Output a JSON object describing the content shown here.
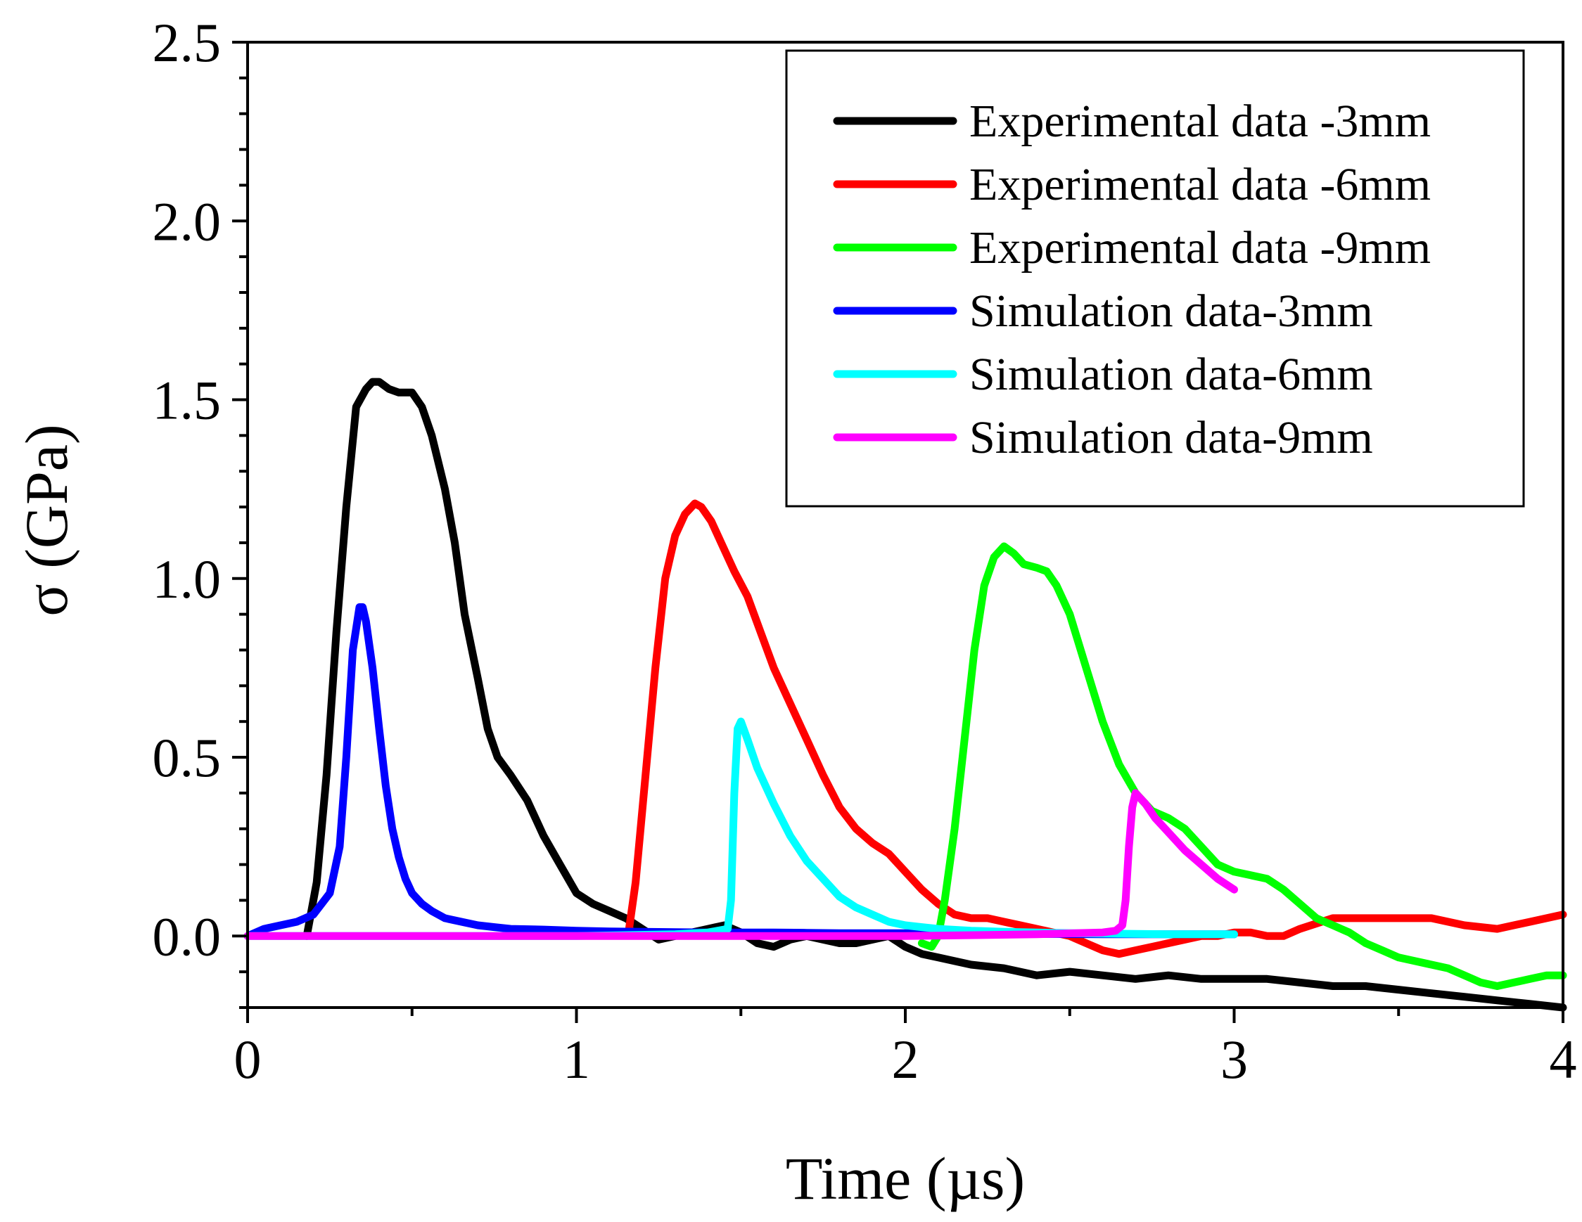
{
  "chart_data": {
    "type": "line",
    "title": "",
    "xlabel": "Time  (µs)",
    "ylabel": "σ  (GPa)",
    "xlim": [
      0,
      4
    ],
    "ylim": [
      -0.2,
      2.5
    ],
    "xticks": [
      0,
      1,
      2,
      3,
      4
    ],
    "xtick_labels": [
      "0",
      "1",
      "2",
      "3",
      "4"
    ],
    "yticks": [
      0.0,
      0.5,
      1.0,
      1.5,
      2.0,
      2.5
    ],
    "ytick_labels": [
      "0.0",
      "0.5",
      "1.0",
      "1.5",
      "2.0",
      "2.5"
    ],
    "grid": false,
    "legend_position": "top-right",
    "series": [
      {
        "name": "Experimental data -3mm",
        "color": "#000000",
        "x": [
          0.18,
          0.21,
          0.24,
          0.27,
          0.3,
          0.33,
          0.36,
          0.38,
          0.4,
          0.43,
          0.46,
          0.5,
          0.53,
          0.56,
          0.6,
          0.63,
          0.66,
          0.7,
          0.73,
          0.76,
          0.8,
          0.85,
          0.9,
          0.95,
          1.0,
          1.05,
          1.1,
          1.15,
          1.2,
          1.25,
          1.3,
          1.35,
          1.4,
          1.45,
          1.5,
          1.55,
          1.6,
          1.65,
          1.7,
          1.75,
          1.8,
          1.85,
          1.9,
          1.95,
          2.0,
          2.05,
          2.1,
          2.15,
          2.2,
          2.3,
          2.4,
          2.5,
          2.6,
          2.7,
          2.8,
          2.9,
          3.0,
          3.1,
          3.2,
          3.3,
          3.4,
          3.5,
          3.6,
          3.7,
          3.8,
          3.9,
          4.0
        ],
        "y": [
          0.0,
          0.15,
          0.45,
          0.85,
          1.2,
          1.48,
          1.53,
          1.55,
          1.55,
          1.53,
          1.52,
          1.52,
          1.48,
          1.4,
          1.25,
          1.1,
          0.9,
          0.72,
          0.58,
          0.5,
          0.45,
          0.38,
          0.28,
          0.2,
          0.12,
          0.09,
          0.07,
          0.05,
          0.02,
          -0.01,
          0.0,
          0.01,
          0.02,
          0.03,
          0.01,
          -0.02,
          -0.03,
          -0.01,
          0.0,
          -0.01,
          -0.02,
          -0.02,
          -0.01,
          0.0,
          -0.03,
          -0.05,
          -0.06,
          -0.07,
          -0.08,
          -0.09,
          -0.11,
          -0.1,
          -0.11,
          -0.12,
          -0.11,
          -0.12,
          -0.12,
          -0.12,
          -0.13,
          -0.14,
          -0.14,
          -0.15,
          -0.16,
          -0.17,
          -0.18,
          -0.19,
          -0.2
        ]
      },
      {
        "name": "Experimental data -6mm",
        "color": "#ff0000",
        "x": [
          1.16,
          1.18,
          1.21,
          1.24,
          1.27,
          1.3,
          1.33,
          1.36,
          1.38,
          1.41,
          1.44,
          1.48,
          1.52,
          1.56,
          1.6,
          1.65,
          1.7,
          1.75,
          1.8,
          1.85,
          1.9,
          1.95,
          2.0,
          2.05,
          2.1,
          2.15,
          2.2,
          2.25,
          2.3,
          2.35,
          2.4,
          2.45,
          2.5,
          2.55,
          2.6,
          2.65,
          2.7,
          2.75,
          2.8,
          2.85,
          2.9,
          2.95,
          3.0,
          3.05,
          3.1,
          3.15,
          3.2,
          3.3,
          3.4,
          3.5,
          3.6,
          3.7,
          3.8,
          3.9,
          4.0
        ],
        "y": [
          0.02,
          0.15,
          0.45,
          0.75,
          1.0,
          1.12,
          1.18,
          1.21,
          1.2,
          1.16,
          1.1,
          1.02,
          0.95,
          0.85,
          0.75,
          0.65,
          0.55,
          0.45,
          0.36,
          0.3,
          0.26,
          0.23,
          0.18,
          0.13,
          0.09,
          0.06,
          0.05,
          0.05,
          0.04,
          0.03,
          0.02,
          0.01,
          0.0,
          -0.02,
          -0.04,
          -0.05,
          -0.04,
          -0.03,
          -0.02,
          -0.01,
          0.0,
          0.0,
          0.01,
          0.01,
          0.0,
          0.0,
          0.02,
          0.05,
          0.05,
          0.05,
          0.05,
          0.03,
          0.02,
          0.04,
          0.06
        ]
      },
      {
        "name": "Experimental data -9mm",
        "color": "#00ff00",
        "x": [
          2.05,
          2.08,
          2.1,
          2.12,
          2.15,
          2.18,
          2.21,
          2.24,
          2.27,
          2.3,
          2.33,
          2.36,
          2.4,
          2.43,
          2.46,
          2.5,
          2.55,
          2.6,
          2.65,
          2.7,
          2.75,
          2.8,
          2.85,
          2.9,
          2.95,
          3.0,
          3.05,
          3.1,
          3.15,
          3.2,
          3.25,
          3.3,
          3.35,
          3.4,
          3.45,
          3.5,
          3.55,
          3.6,
          3.65,
          3.7,
          3.75,
          3.8,
          3.85,
          3.9,
          3.95,
          4.0
        ],
        "y": [
          -0.02,
          -0.03,
          0.0,
          0.1,
          0.3,
          0.55,
          0.8,
          0.98,
          1.06,
          1.09,
          1.07,
          1.04,
          1.03,
          1.02,
          0.98,
          0.9,
          0.75,
          0.6,
          0.48,
          0.4,
          0.35,
          0.33,
          0.3,
          0.25,
          0.2,
          0.18,
          0.17,
          0.16,
          0.13,
          0.09,
          0.05,
          0.03,
          0.01,
          -0.02,
          -0.04,
          -0.06,
          -0.07,
          -0.08,
          -0.09,
          -0.11,
          -0.13,
          -0.14,
          -0.13,
          -0.12,
          -0.11,
          -0.11
        ]
      },
      {
        "name": "Simulation data-3mm",
        "color": "#0000ff",
        "x": [
          0.0,
          0.05,
          0.1,
          0.15,
          0.2,
          0.25,
          0.28,
          0.3,
          0.32,
          0.34,
          0.35,
          0.36,
          0.38,
          0.4,
          0.42,
          0.44,
          0.46,
          0.48,
          0.5,
          0.53,
          0.56,
          0.6,
          0.65,
          0.7,
          0.75,
          0.8,
          0.9,
          1.0,
          1.1,
          1.2,
          1.3,
          1.4,
          1.5,
          1.6,
          1.7,
          1.8,
          1.9,
          2.0,
          2.2,
          2.4,
          2.6,
          2.8,
          3.0
        ],
        "y": [
          0.0,
          0.02,
          0.03,
          0.04,
          0.06,
          0.12,
          0.25,
          0.5,
          0.8,
          0.92,
          0.92,
          0.88,
          0.75,
          0.58,
          0.42,
          0.3,
          0.22,
          0.16,
          0.12,
          0.09,
          0.07,
          0.05,
          0.04,
          0.03,
          0.025,
          0.02,
          0.018,
          0.015,
          0.013,
          0.012,
          0.011,
          0.01,
          0.01,
          0.01,
          0.009,
          0.008,
          0.008,
          0.008,
          0.007,
          0.006,
          0.005,
          0.005,
          0.005
        ]
      },
      {
        "name": "Simulation data-6mm",
        "color": "#00ffff",
        "x": [
          0.0,
          0.5,
          1.0,
          1.3,
          1.4,
          1.46,
          1.47,
          1.48,
          1.49,
          1.5,
          1.52,
          1.55,
          1.6,
          1.65,
          1.7,
          1.75,
          1.8,
          1.85,
          1.9,
          1.95,
          2.0,
          2.05,
          2.1,
          2.2,
          2.3,
          2.4,
          2.5,
          2.6,
          2.7,
          2.8,
          2.9,
          3.0
        ],
        "y": [
          0.0,
          0.0,
          0.0,
          0.005,
          0.01,
          0.02,
          0.1,
          0.4,
          0.58,
          0.6,
          0.55,
          0.47,
          0.37,
          0.28,
          0.21,
          0.16,
          0.11,
          0.08,
          0.06,
          0.04,
          0.03,
          0.025,
          0.02,
          0.015,
          0.012,
          0.01,
          0.008,
          0.007,
          0.006,
          0.005,
          0.005,
          0.005
        ]
      },
      {
        "name": "Simulation data-9mm",
        "color": "#ff00ff",
        "x": [
          0.0,
          0.5,
          1.0,
          1.5,
          2.0,
          2.4,
          2.6,
          2.64,
          2.66,
          2.67,
          2.68,
          2.69,
          2.7,
          2.71,
          2.73,
          2.76,
          2.8,
          2.85,
          2.9,
          2.95,
          3.0
        ],
        "y": [
          0.0,
          0.0,
          0.0,
          0.0,
          0.0,
          0.005,
          0.01,
          0.015,
          0.03,
          0.1,
          0.25,
          0.36,
          0.4,
          0.39,
          0.37,
          0.33,
          0.29,
          0.24,
          0.2,
          0.16,
          0.13
        ]
      }
    ]
  }
}
